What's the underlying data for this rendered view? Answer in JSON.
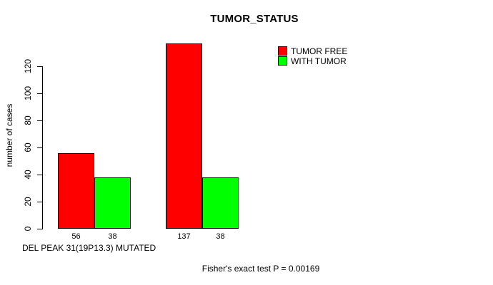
{
  "chart_data": {
    "type": "bar",
    "title": "TUMOR_STATUS",
    "xlabel": "DEL PEAK 31(19P13.3) MUTATED",
    "ylabel": "number of cases",
    "annotation": "Fisher's exact test P = 0.00169",
    "series": [
      {
        "name": "TUMOR FREE",
        "color": "#FF0000",
        "values": [
          56,
          137
        ]
      },
      {
        "name": "WITH TUMOR",
        "color": "#00FF00",
        "values": [
          38,
          38
        ]
      }
    ],
    "yticks": [
      0,
      20,
      40,
      60,
      80,
      100,
      120
    ],
    "ylim": [
      0,
      137
    ],
    "value_labels_shown": true,
    "legend_position": "top-right",
    "grid": false,
    "background": "#FFFFFF"
  }
}
